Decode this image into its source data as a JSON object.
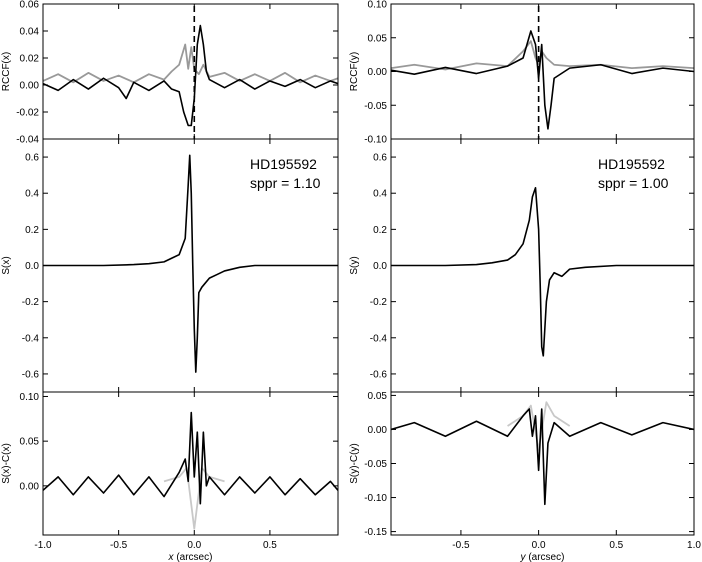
{
  "chart_data": [
    {
      "id": "left",
      "type": "line",
      "xlabel_var": "x",
      "xlabel_unit": " (arcsec)",
      "xlim": [
        -1.0,
        0.95
      ],
      "xticks": [
        -1.0,
        -0.5,
        0.0,
        0.5
      ],
      "xtick_labels": [
        "-1.0",
        "-0.5",
        "0.0",
        "0.5"
      ],
      "marker_line_x": 0.0,
      "panels": [
        {
          "ylabel": "RCCF(x)",
          "ylim": [
            -0.04,
            0.06
          ],
          "yticks": [
            -0.04,
            -0.02,
            0.0,
            0.02,
            0.04,
            0.06
          ],
          "ytick_labels": [
            "-0.04",
            "-0.02",
            "0.00",
            "0.02",
            "0.04",
            "0.06"
          ],
          "series": [
            {
              "color": "#999999",
              "x": [
                -1.0,
                -0.9,
                -0.8,
                -0.7,
                -0.6,
                -0.5,
                -0.4,
                -0.3,
                -0.2,
                -0.15,
                -0.1,
                -0.06,
                -0.04,
                -0.02,
                0.0,
                0.03,
                0.06,
                0.1,
                0.2,
                0.3,
                0.4,
                0.5,
                0.6,
                0.7,
                0.8,
                0.9,
                0.95
              ],
              "y": [
                0.003,
                0.008,
                0.002,
                0.009,
                0.003,
                0.007,
                0.002,
                0.008,
                0.004,
                0.01,
                0.015,
                0.03,
                0.012,
                0.028,
                0.012,
                0.008,
                0.015,
                0.006,
                0.009,
                0.003,
                0.008,
                0.003,
                0.009,
                0.002,
                0.007,
                0.003,
                0.005
              ]
            },
            {
              "color": "#000000",
              "x": [
                -1.0,
                -0.9,
                -0.8,
                -0.7,
                -0.6,
                -0.5,
                -0.45,
                -0.4,
                -0.3,
                -0.2,
                -0.15,
                -0.1,
                -0.07,
                -0.04,
                -0.02,
                0.0,
                0.02,
                0.04,
                0.06,
                0.08,
                0.1,
                0.2,
                0.3,
                0.4,
                0.5,
                0.6,
                0.7,
                0.8,
                0.9,
                0.95
              ],
              "y": [
                0.001,
                -0.004,
                0.004,
                -0.003,
                0.005,
                -0.002,
                -0.01,
                0.002,
                -0.004,
                0.003,
                -0.003,
                -0.005,
                -0.02,
                -0.03,
                -0.03,
                -0.01,
                0.03,
                0.044,
                0.03,
                0.01,
                0.004,
                -0.002,
                0.004,
                -0.003,
                0.003,
                -0.001,
                0.004,
                -0.002,
                0.003,
                0.001
              ]
            }
          ]
        },
        {
          "ylabel": "S(x)",
          "ylim": [
            -0.7,
            0.7
          ],
          "yticks": [
            -0.6,
            -0.4,
            -0.2,
            0.0,
            0.2,
            0.4,
            0.6
          ],
          "ytick_labels": [
            "-0.6",
            "-0.4",
            "-0.2",
            "0.0",
            "0.2",
            "0.4",
            "0.6"
          ],
          "annotation_lines": [
            "HD195592",
            "sppr = 1.10"
          ],
          "series": [
            {
              "color": "#000000",
              "x": [
                -1.0,
                -0.8,
                -0.6,
                -0.4,
                -0.3,
                -0.2,
                -0.15,
                -0.1,
                -0.06,
                -0.04,
                -0.03,
                -0.02,
                -0.01,
                0.0,
                0.01,
                0.02,
                0.03,
                0.05,
                0.07,
                0.1,
                0.15,
                0.2,
                0.3,
                0.4,
                0.6,
                0.8,
                0.95
              ],
              "y": [
                0.0,
                0.0,
                0.0,
                0.005,
                0.01,
                0.02,
                0.04,
                0.06,
                0.15,
                0.45,
                0.61,
                0.4,
                0.0,
                -0.35,
                -0.59,
                -0.4,
                -0.15,
                -0.12,
                -0.1,
                -0.07,
                -0.05,
                -0.03,
                -0.01,
                0.0,
                0.0,
                0.0,
                0.0
              ]
            }
          ]
        },
        {
          "ylabel": "S(x)-C(x)",
          "ylim": [
            -0.055,
            0.105
          ],
          "yticks": [
            0.0,
            0.05,
            0.1
          ],
          "ytick_labels": [
            "0.00",
            "0.05",
            "0.10"
          ],
          "series": [
            {
              "color": "#c8c8c8",
              "x": [
                -0.2,
                -0.1,
                -0.05,
                0.0,
                0.05,
                0.1,
                0.2
              ],
              "y": [
                0.005,
                0.01,
                0.02,
                -0.048,
                0.02,
                0.01,
                0.005
              ]
            },
            {
              "color": "#000000",
              "x": [
                -1.0,
                -0.9,
                -0.8,
                -0.7,
                -0.6,
                -0.5,
                -0.4,
                -0.3,
                -0.2,
                -0.1,
                -0.06,
                -0.04,
                -0.02,
                0.0,
                0.02,
                0.04,
                0.06,
                0.08,
                0.1,
                0.2,
                0.3,
                0.4,
                0.5,
                0.6,
                0.7,
                0.8,
                0.9,
                0.95
              ],
              "y": [
                -0.005,
                0.01,
                -0.01,
                0.01,
                -0.008,
                0.012,
                -0.01,
                0.01,
                -0.012,
                0.015,
                0.03,
                0.005,
                0.082,
                0.01,
                0.06,
                -0.02,
                0.06,
                0.0,
                0.01,
                -0.01,
                0.01,
                -0.008,
                0.01,
                -0.01,
                0.008,
                -0.01,
                0.005,
                -0.005
              ]
            }
          ]
        }
      ]
    },
    {
      "id": "right",
      "type": "line",
      "xlabel_var": "y",
      "xlabel_unit": " (arcsec)",
      "xlim": [
        -0.95,
        1.0
      ],
      "xticks": [
        -0.5,
        0.0,
        0.5,
        1.0
      ],
      "xtick_labels": [
        "-0.5",
        "0.0",
        "0.5",
        "1.0"
      ],
      "marker_line_x": 0.0,
      "panels": [
        {
          "ylabel": "RCCF(y)",
          "ylim": [
            -0.1,
            0.1
          ],
          "yticks": [
            -0.1,
            -0.05,
            0.0,
            0.05,
            0.1
          ],
          "ytick_labels": [
            "-0.10",
            "-0.05",
            "0.00",
            "0.05",
            "0.10"
          ],
          "series": [
            {
              "color": "#999999",
              "x": [
                -0.95,
                -0.8,
                -0.6,
                -0.4,
                -0.2,
                -0.1,
                -0.05,
                -0.02,
                0.0,
                0.02,
                0.05,
                0.1,
                0.2,
                0.4,
                0.6,
                0.8,
                1.0
              ],
              "y": [
                0.005,
                0.01,
                0.003,
                0.012,
                0.008,
                0.03,
                0.045,
                0.02,
                0.01,
                0.03,
                0.02,
                0.01,
                0.008,
                0.01,
                0.005,
                0.008,
                0.005
              ]
            },
            {
              "color": "#000000",
              "x": [
                -0.95,
                -0.8,
                -0.6,
                -0.4,
                -0.2,
                -0.1,
                -0.05,
                -0.02,
                0.0,
                0.02,
                0.04,
                0.06,
                0.08,
                0.1,
                0.2,
                0.4,
                0.6,
                0.8,
                1.0
              ],
              "y": [
                0.002,
                -0.004,
                0.006,
                -0.003,
                0.008,
                0.02,
                0.06,
                0.04,
                -0.01,
                0.04,
                -0.05,
                -0.085,
                -0.05,
                -0.01,
                0.005,
                0.01,
                -0.003,
                0.005,
                0.0
              ]
            }
          ]
        },
        {
          "ylabel": "S(y)",
          "ylim": [
            -0.7,
            0.7
          ],
          "yticks": [
            -0.6,
            -0.4,
            -0.2,
            0.0,
            0.2,
            0.4,
            0.6
          ],
          "ytick_labels": [
            "-0.6",
            "-0.4",
            "-0.2",
            "0.0",
            "0.2",
            "0.4",
            "0.6"
          ],
          "annotation_lines": [
            "HD195592",
            "sppr = 1.00"
          ],
          "series": [
            {
              "color": "#000000",
              "x": [
                -0.95,
                -0.8,
                -0.6,
                -0.4,
                -0.3,
                -0.2,
                -0.15,
                -0.1,
                -0.06,
                -0.04,
                -0.02,
                0.0,
                0.01,
                0.02,
                0.03,
                0.05,
                0.07,
                0.1,
                0.15,
                0.2,
                0.3,
                0.5,
                0.7,
                0.9,
                1.0
              ],
              "y": [
                0.0,
                0.0,
                0.0,
                0.005,
                0.015,
                0.03,
                0.06,
                0.12,
                0.25,
                0.38,
                0.43,
                0.2,
                -0.1,
                -0.45,
                -0.5,
                -0.2,
                -0.08,
                -0.04,
                -0.06,
                -0.02,
                -0.01,
                0.0,
                0.0,
                0.0,
                0.0
              ]
            }
          ]
        },
        {
          "ylabel": "S(y)-C(y)",
          "ylim": [
            -0.155,
            0.055
          ],
          "yticks": [
            -0.15,
            -0.1,
            -0.05,
            0.0,
            0.05
          ],
          "ytick_labels": [
            "-0.15",
            "-0.10",
            "-0.05",
            "0.00",
            "0.05"
          ],
          "series": [
            {
              "color": "#c8c8c8",
              "x": [
                -0.2,
                -0.1,
                -0.05,
                0.0,
                0.05,
                0.1,
                0.2
              ],
              "y": [
                0.005,
                0.02,
                0.035,
                -0.03,
                0.04,
                0.02,
                0.005
              ]
            },
            {
              "color": "#000000",
              "x": [
                -0.95,
                -0.8,
                -0.6,
                -0.4,
                -0.2,
                -0.1,
                -0.06,
                -0.04,
                -0.02,
                0.0,
                0.02,
                0.04,
                0.06,
                0.1,
                0.2,
                0.4,
                0.6,
                0.8,
                1.0
              ],
              "y": [
                0.0,
                0.01,
                -0.01,
                0.012,
                -0.01,
                0.02,
                0.03,
                -0.01,
                0.02,
                -0.06,
                0.03,
                -0.11,
                -0.02,
                0.01,
                -0.01,
                0.01,
                -0.008,
                0.01,
                0.0
              ]
            }
          ]
        }
      ]
    }
  ]
}
